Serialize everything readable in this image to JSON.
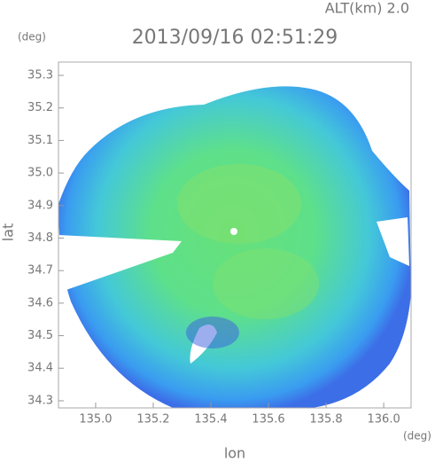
{
  "chart_data": {
    "type": "radar-map",
    "title": "2013/09/16 02:51:29",
    "subtitle": "ALT(km) 2.0",
    "x_label": "lon",
    "y_label": "lat",
    "x_unit": "(deg)",
    "y_unit": "(deg)",
    "xlim": [
      134.871,
      136.095
    ],
    "ylim": [
      34.278,
      35.341
    ],
    "xticks": [
      {
        "value": 135,
        "label": "135.0"
      },
      135.2,
      135.4,
      135.6,
      135.8,
      {
        "value": 136,
        "label": "136.0"
      }
    ],
    "yticks": [
      34.3,
      34.4,
      34.5,
      34.6,
      34.7,
      34.8,
      34.9,
      {
        "value": 35,
        "label": "35.0"
      },
      35.1,
      35.2,
      35.3
    ]
  }
}
